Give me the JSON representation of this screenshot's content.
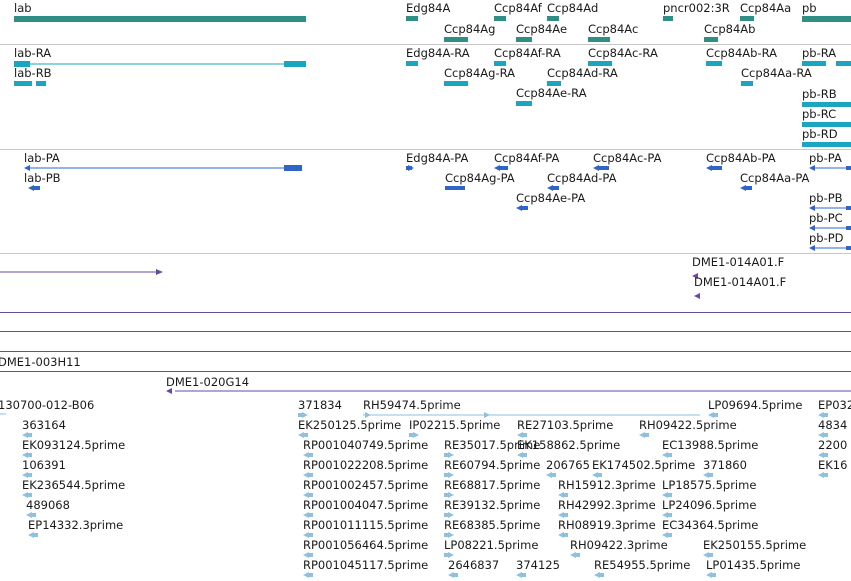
{
  "colors": {
    "gene": "#2f8f85",
    "transcript": "#1aa5c0",
    "protein": "#2f64c8",
    "clone": "#6a4aa0",
    "est": "#8ec0e0",
    "separator": "#6a4a9a"
  },
  "tracks": {
    "gene": {
      "labels": [
        "lab",
        "Edg84A",
        "Ccp84Af",
        "Ccp84Ad",
        "pncr002:3R",
        "Ccp84Aa",
        "pb",
        "Ccp84Ag",
        "Ccp84Ae",
        "Ccp84Ac",
        "Ccp84Ab"
      ]
    },
    "transcript": {
      "labels": [
        "lab-RA",
        "lab-RB",
        "Edg84A-RA",
        "Ccp84Af-RA",
        "Ccp84Ac-RA",
        "Ccp84Ab-RA",
        "pb-RA",
        "Ccp84Ag-RA",
        "Ccp84Ad-RA",
        "Ccp84Aa-RA",
        "Ccp84Ae-RA",
        "pb-RB",
        "pb-RC",
        "pb-RD"
      ]
    },
    "protein": {
      "labels": [
        "lab-PA",
        "lab-PB",
        "Edg84A-PA",
        "Ccp84Af-PA",
        "Ccp84Ac-PA",
        "Ccp84Ab-PA",
        "pb-PA",
        "Ccp84Ag-PA",
        "Ccp84Ad-PA",
        "Ccp84Aa-PA",
        "Ccp84Ae-PA",
        "pb-PB",
        "pb-PC",
        "pb-PD"
      ]
    },
    "clone": {
      "labels": [
        "DME1-014A01.F",
        "DME1-014A01.F"
      ]
    },
    "clone2": {
      "labels": [
        "DME1-003H11",
        "DME1-020G14"
      ]
    },
    "est": {
      "labels": [
        "130700-012-B06",
        "371834",
        "RH59474.5prime",
        "LP09694.5prime",
        "EP032",
        "363164",
        "EK250125.5prime",
        "IP02215.5prime",
        "RE27103.5prime",
        "RH09422.5prime",
        "4834",
        "EK093124.5prime",
        "RP001040749.5prime",
        "RE35017.5prime",
        "EK158862.5prime",
        "EC13988.5prime",
        "2200",
        "106391",
        "RP001022208.5prime",
        "RE60794.5prime",
        "206765",
        "EK174502.5prime",
        "371860",
        "EK16",
        "EK236544.5prime",
        "RP001002457.5prime",
        "RE68817.5prime",
        "RH15912.3prime",
        "LP18575.5prime",
        "489068",
        "RP001004047.5prime",
        "RE39132.5prime",
        "RH42992.3prime",
        "LP24096.5prime",
        "EP14332.3prime",
        "RP001011115.5prime",
        "RE68385.5prime",
        "RH08919.3prime",
        "EC34364.5prime",
        "RP001056464.5prime",
        "LP08221.5prime",
        "RH09422.3prime",
        "EK250155.5prime",
        "RP001045117.5prime",
        "2646837",
        "374125",
        "RE54955.5prime",
        "LP01435.5prime"
      ]
    }
  }
}
